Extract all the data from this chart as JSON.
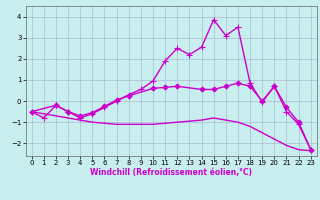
{
  "xlabel": "Windchill (Refroidissement éolien,°C)",
  "xlim": [
    -0.5,
    23.5
  ],
  "ylim": [
    -2.6,
    4.5
  ],
  "yticks": [
    -2,
    -1,
    0,
    1,
    2,
    3,
    4
  ],
  "xticks": [
    0,
    1,
    2,
    3,
    4,
    5,
    6,
    7,
    8,
    9,
    10,
    11,
    12,
    13,
    14,
    15,
    16,
    17,
    18,
    19,
    20,
    21,
    22,
    23
  ],
  "bg_color": "#c8eef0",
  "line_color": "#cc00cc",
  "grid_color": "#aabbd0",
  "lines": [
    {
      "x": [
        0,
        1,
        2,
        3,
        4,
        5,
        6,
        7,
        8,
        9,
        10,
        11,
        12,
        13,
        14,
        15,
        16,
        17,
        18,
        19,
        20,
        21,
        22,
        23
      ],
      "y": [
        -0.5,
        -0.8,
        -0.2,
        -0.5,
        -0.8,
        -0.6,
        -0.3,
        0.0,
        0.3,
        0.55,
        0.95,
        1.9,
        2.5,
        2.2,
        2.55,
        3.85,
        3.1,
        3.5,
        0.85,
        -0.05,
        0.7,
        -0.5,
        -1.1,
        -2.3
      ],
      "marker": "+",
      "markersize": 4,
      "linewidth": 1.0
    },
    {
      "x": [
        0,
        2,
        3,
        4,
        5,
        6,
        7,
        8,
        10,
        11,
        12,
        14,
        15,
        16,
        17,
        18,
        19,
        20,
        21,
        22,
        23
      ],
      "y": [
        -0.5,
        -0.2,
        -0.5,
        -0.7,
        -0.55,
        -0.25,
        0.05,
        0.25,
        0.6,
        0.65,
        0.7,
        0.55,
        0.55,
        0.7,
        0.85,
        0.7,
        0.0,
        0.7,
        -0.3,
        -1.0,
        -2.3
      ],
      "marker": "D",
      "markersize": 2.5,
      "linewidth": 1.0
    },
    {
      "x": [
        0,
        1,
        2,
        3,
        4,
        5,
        6,
        7,
        8,
        9,
        10,
        11,
        12,
        13,
        14,
        15,
        16,
        17,
        18,
        19,
        20,
        21,
        22,
        23
      ],
      "y": [
        -0.5,
        -0.6,
        -0.7,
        -0.8,
        -0.9,
        -1.0,
        -1.05,
        -1.1,
        -1.1,
        -1.1,
        -1.1,
        -1.05,
        -1.0,
        -0.95,
        -0.9,
        -0.8,
        -0.9,
        -1.0,
        -1.2,
        -1.5,
        -1.8,
        -2.1,
        -2.3,
        -2.35
      ],
      "marker": null,
      "markersize": 0,
      "linewidth": 1.0
    }
  ]
}
